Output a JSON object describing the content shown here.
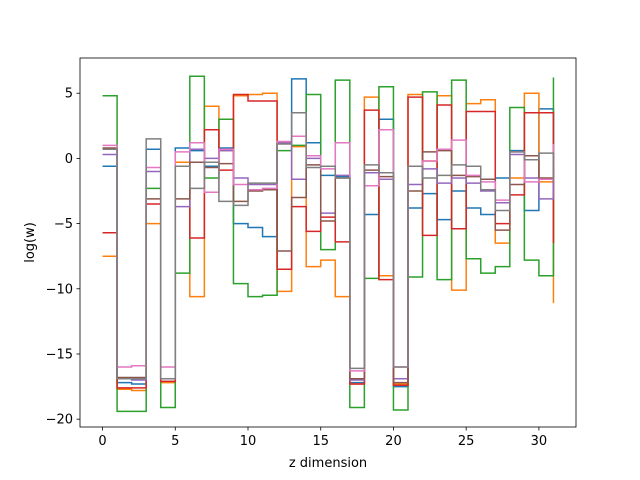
{
  "chart_data": {
    "type": "line",
    "step": "post",
    "xlabel": "z dimension",
    "ylabel": "log(w)",
    "xlim": [
      -1.55,
      32.55
    ],
    "ylim": [
      -20.6,
      7.7
    ],
    "xticks": [
      0,
      5,
      10,
      15,
      20,
      25,
      30
    ],
    "yticks": [
      -20,
      -15,
      -10,
      -5,
      0,
      5
    ],
    "ytick_labels": [
      "−20",
      "−15",
      "−10",
      "−5",
      "0",
      "5"
    ],
    "grid": false,
    "x": [
      0,
      1,
      2,
      3,
      4,
      5,
      6,
      7,
      8,
      9,
      10,
      11,
      12,
      13,
      14,
      15,
      16,
      17,
      18,
      19,
      20,
      21,
      22,
      23,
      24,
      25,
      26,
      27,
      28,
      29,
      30,
      31
    ],
    "series": [
      {
        "color": "#1f77b4",
        "values": [
          -0.6,
          -17.2,
          -17.3,
          0.7,
          -17.1,
          0.8,
          0.6,
          -0.6,
          0.8,
          -5.0,
          -5.3,
          -6.0,
          1.2,
          6.1,
          1.2,
          -1.3,
          -1.4,
          -17.2,
          -4.3,
          3.0,
          -17.5,
          -3.8,
          -2.7,
          -4.7,
          -2.5,
          -3.8,
          -4.3,
          -1.5,
          0.6,
          -4.0,
          3.8,
          -1.5
        ]
      },
      {
        "color": "#ff7f0e",
        "values": [
          -7.5,
          -17.7,
          -17.8,
          -5.0,
          -17.2,
          -0.3,
          -10.6,
          4.0,
          0.6,
          4.8,
          4.9,
          5.0,
          -10.2,
          0.9,
          -8.3,
          -7.8,
          -10.6,
          -17.3,
          4.7,
          -9.0,
          -17.3,
          4.9,
          -0.2,
          4.8,
          -10.1,
          4.2,
          4.5,
          -6.5,
          -1.5,
          5.0,
          -1.8,
          -11.1
        ]
      },
      {
        "color": "#2ca02c",
        "values": [
          4.8,
          -19.4,
          -19.4,
          -2.3,
          -19.1,
          -8.8,
          6.3,
          -1.5,
          3.0,
          -9.6,
          -10.6,
          -10.5,
          0.6,
          1.0,
          4.9,
          -7.0,
          6.0,
          -19.1,
          -9.2,
          5.5,
          -19.3,
          -9.1,
          5.1,
          -9.3,
          6.0,
          -7.7,
          -8.8,
          -8.3,
          3.9,
          -7.8,
          -9.0,
          6.2
        ]
      },
      {
        "color": "#d62728",
        "values": [
          -5.7,
          -17.6,
          -17.6,
          -3.5,
          -17.1,
          -0.6,
          -6.1,
          2.2,
          -0.9,
          4.9,
          4.4,
          4.4,
          -8.5,
          -3.7,
          -5.6,
          -4.5,
          -6.4,
          -17.3,
          3.7,
          -9.3,
          -17.4,
          4.7,
          -5.9,
          4.1,
          -5.4,
          3.6,
          3.6,
          -5.0,
          -2.8,
          3.5,
          3.5,
          -6.5
        ]
      },
      {
        "color": "#9467bd",
        "values": [
          0.3,
          -16.9,
          -17.0,
          -1.0,
          -16.9,
          -3.7,
          0.7,
          0.0,
          0.6,
          -1.5,
          -2.0,
          -2.0,
          1.2,
          -1.6,
          0.0,
          -4.2,
          -1.3,
          -17.0,
          -1.1,
          -1.6,
          -16.9,
          -2.0,
          -0.8,
          -1.9,
          -1.5,
          -1.9,
          -2.5,
          -3.4,
          0.3,
          -1.5,
          -3.1,
          -1.7
        ]
      },
      {
        "color": "#8c564b",
        "values": [
          0.8,
          -16.8,
          -16.8,
          -3.1,
          -16.9,
          -3.1,
          -0.3,
          -0.7,
          -0.4,
          -3.3,
          -2.5,
          -2.4,
          -7.1,
          -3.0,
          -0.5,
          -4.8,
          -1.5,
          -16.9,
          -0.9,
          -1.4,
          -17.2,
          -2.5,
          0.5,
          0.6,
          -1.3,
          -1.4,
          -1.6,
          -5.5,
          -2.0,
          0.2,
          -1.5,
          -0.9
        ]
      },
      {
        "color": "#e377c2",
        "values": [
          1.0,
          -16.0,
          -15.9,
          -0.7,
          -16.0,
          0.5,
          1.2,
          -2.6,
          0.7,
          -2.0,
          -2.4,
          -2.3,
          1.3,
          1.7,
          0.2,
          -0.8,
          1.2,
          -16.3,
          -2.1,
          2.2,
          -16.0,
          -0.6,
          -0.2,
          0.7,
          1.4,
          -1.3,
          -1.8,
          -3.2,
          0.5,
          -1.8,
          -1.6,
          1.1
        ]
      },
      {
        "color": "#7f7f7f",
        "values": [
          0.7,
          -16.9,
          -16.9,
          1.5,
          -16.9,
          -0.6,
          -2.3,
          -0.3,
          -3.3,
          -3.6,
          -1.9,
          -1.9,
          1.1,
          3.5,
          -0.7,
          -0.6,
          -1.5,
          -16.1,
          -0.5,
          -1.1,
          -16.0,
          -0.6,
          -1.5,
          -1.3,
          -0.5,
          -0.6,
          -2.4,
          -4.0,
          0.5,
          -0.1,
          0.4,
          -1.7
        ]
      }
    ]
  }
}
